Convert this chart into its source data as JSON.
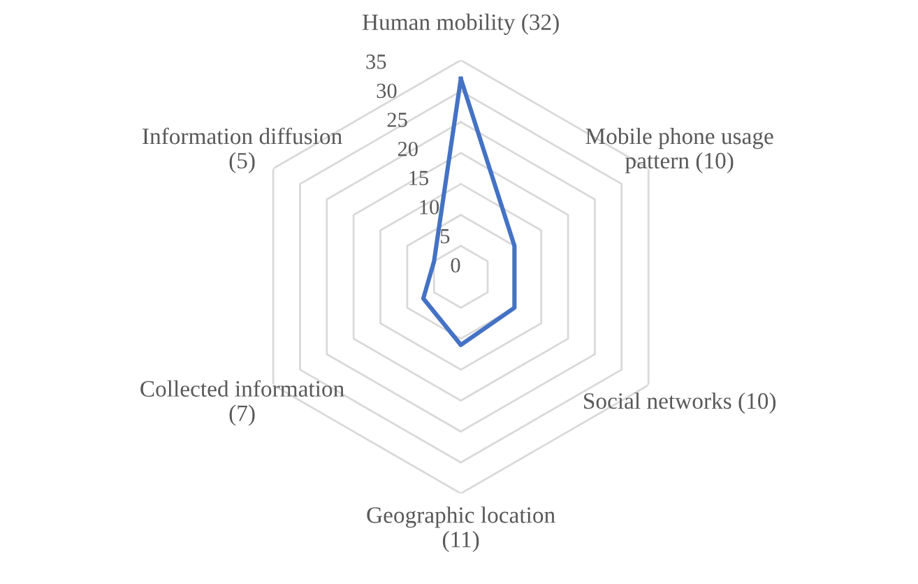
{
  "chart_data": {
    "type": "radar",
    "categories": [
      "Human mobility (32)",
      "Mobile phone usage\npattern (10)",
      "Social networks (10)",
      "Geographic location\n(11)",
      "Collected information\n(7)",
      "Information diffusion\n(5)"
    ],
    "series": [
      {
        "color": "#4472c4",
        "values": [
          32,
          10,
          10,
          11,
          7,
          5
        ]
      }
    ],
    "ylim": [
      0,
      35
    ],
    "yticks": [
      0,
      5,
      10,
      15,
      20,
      25,
      30,
      35
    ],
    "grid": true,
    "marker": "none",
    "line_style": "solid"
  }
}
